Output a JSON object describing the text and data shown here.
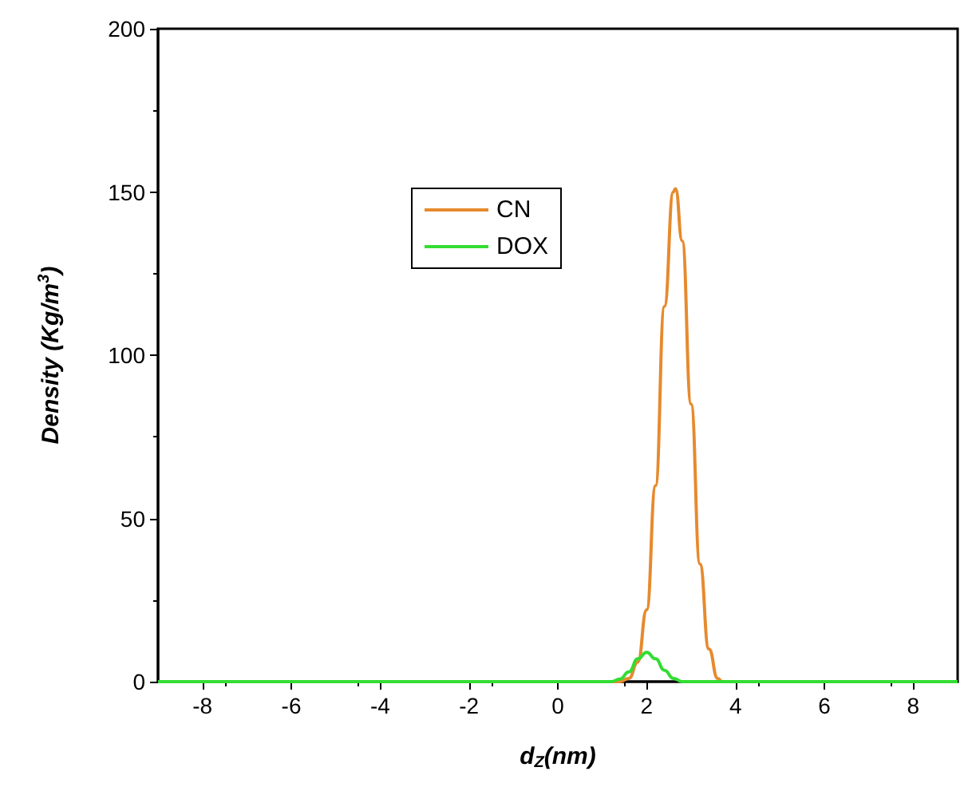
{
  "chart_data": {
    "type": "line",
    "xlabel": "d$_{Z}$(nm)",
    "ylabel": "Density (Kg/m$^{3}$)",
    "xlim": [
      -9,
      9
    ],
    "xticks": [
      -8,
      -6,
      -4,
      -2,
      0,
      2,
      4,
      6,
      8
    ],
    "ylim": [
      0,
      200
    ],
    "yticks": [
      0,
      50,
      100,
      150,
      200
    ],
    "grid": false,
    "legend": "top left",
    "marker": "none",
    "line_style": "solid",
    "series": [
      {
        "name": "CN",
        "color": "#e68a2e",
        "x": [
          -9,
          1.4,
          1.6,
          1.8,
          2.0,
          2.2,
          2.4,
          2.6,
          2.65,
          2.8,
          3.0,
          3.2,
          3.4,
          3.6,
          3.7,
          9
        ],
        "values": [
          0,
          0,
          1,
          6,
          22,
          60,
          115,
          150,
          151,
          135,
          85,
          36,
          10,
          1,
          0,
          0
        ]
      },
      {
        "name": "DOX",
        "color": "#33dd33",
        "x": [
          -9,
          1.2,
          1.4,
          1.6,
          1.8,
          2.0,
          2.2,
          2.4,
          2.6,
          2.8,
          9
        ],
        "values": [
          0,
          0,
          0.8,
          3,
          7,
          9,
          7,
          3.5,
          1,
          0,
          0
        ]
      }
    ]
  }
}
